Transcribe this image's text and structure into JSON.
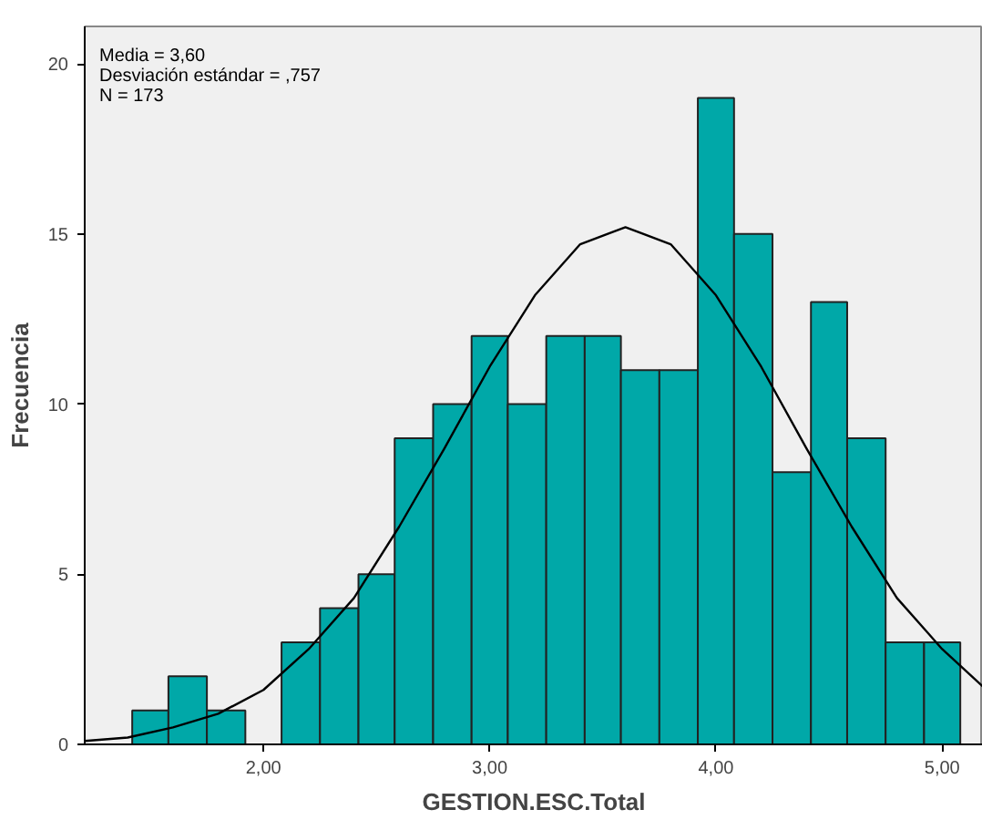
{
  "chart_data": {
    "type": "histogram",
    "xlabel": "GESTION.ESC.Total",
    "ylabel": "Frecuencia",
    "annotations": [
      "Media = 3,60",
      "Desviación estándar = ,757",
      "N = 173"
    ],
    "xlim": [
      1.21,
      5.18
    ],
    "ylim": [
      0,
      21.1
    ],
    "xticks": [
      {
        "value": 2,
        "label": "2,00"
      },
      {
        "value": 3,
        "label": "3,00"
      },
      {
        "value": 4,
        "label": "4,00"
      },
      {
        "value": 5,
        "label": "5,00"
      }
    ],
    "yticks": [
      0,
      5,
      10,
      15,
      20
    ],
    "grid": false,
    "series": [
      {
        "color": "#00a8a8",
        "bins": [
          1.42,
          1.58,
          1.75,
          1.92,
          2.08,
          2.25,
          2.42,
          2.58,
          2.75,
          2.92,
          3.08,
          3.25,
          3.42,
          3.58,
          3.75,
          3.92,
          4.08,
          4.25,
          4.42,
          4.58,
          4.75,
          4.92,
          5.08
        ],
        "values": [
          1,
          2,
          1,
          0,
          3,
          4,
          5,
          9,
          10,
          12,
          10,
          12,
          12,
          11,
          11,
          19,
          15,
          8,
          13,
          9,
          3,
          3
        ]
      },
      {
        "type": "line",
        "color": "#000000",
        "x": [
          1.21,
          1.4,
          1.6,
          1.8,
          2.0,
          2.2,
          2.4,
          2.6,
          2.8,
          3.0,
          3.2,
          3.4,
          3.6,
          3.8,
          4.0,
          4.2,
          4.4,
          4.6,
          4.8,
          5.0,
          5.18
        ],
        "values": [
          0.1,
          0.2,
          0.5,
          0.9,
          1.6,
          2.8,
          4.3,
          6.4,
          8.7,
          11.1,
          13.2,
          14.7,
          15.2,
          14.7,
          13.2,
          11.1,
          8.7,
          6.4,
          4.3,
          2.8,
          1.7
        ]
      }
    ]
  }
}
